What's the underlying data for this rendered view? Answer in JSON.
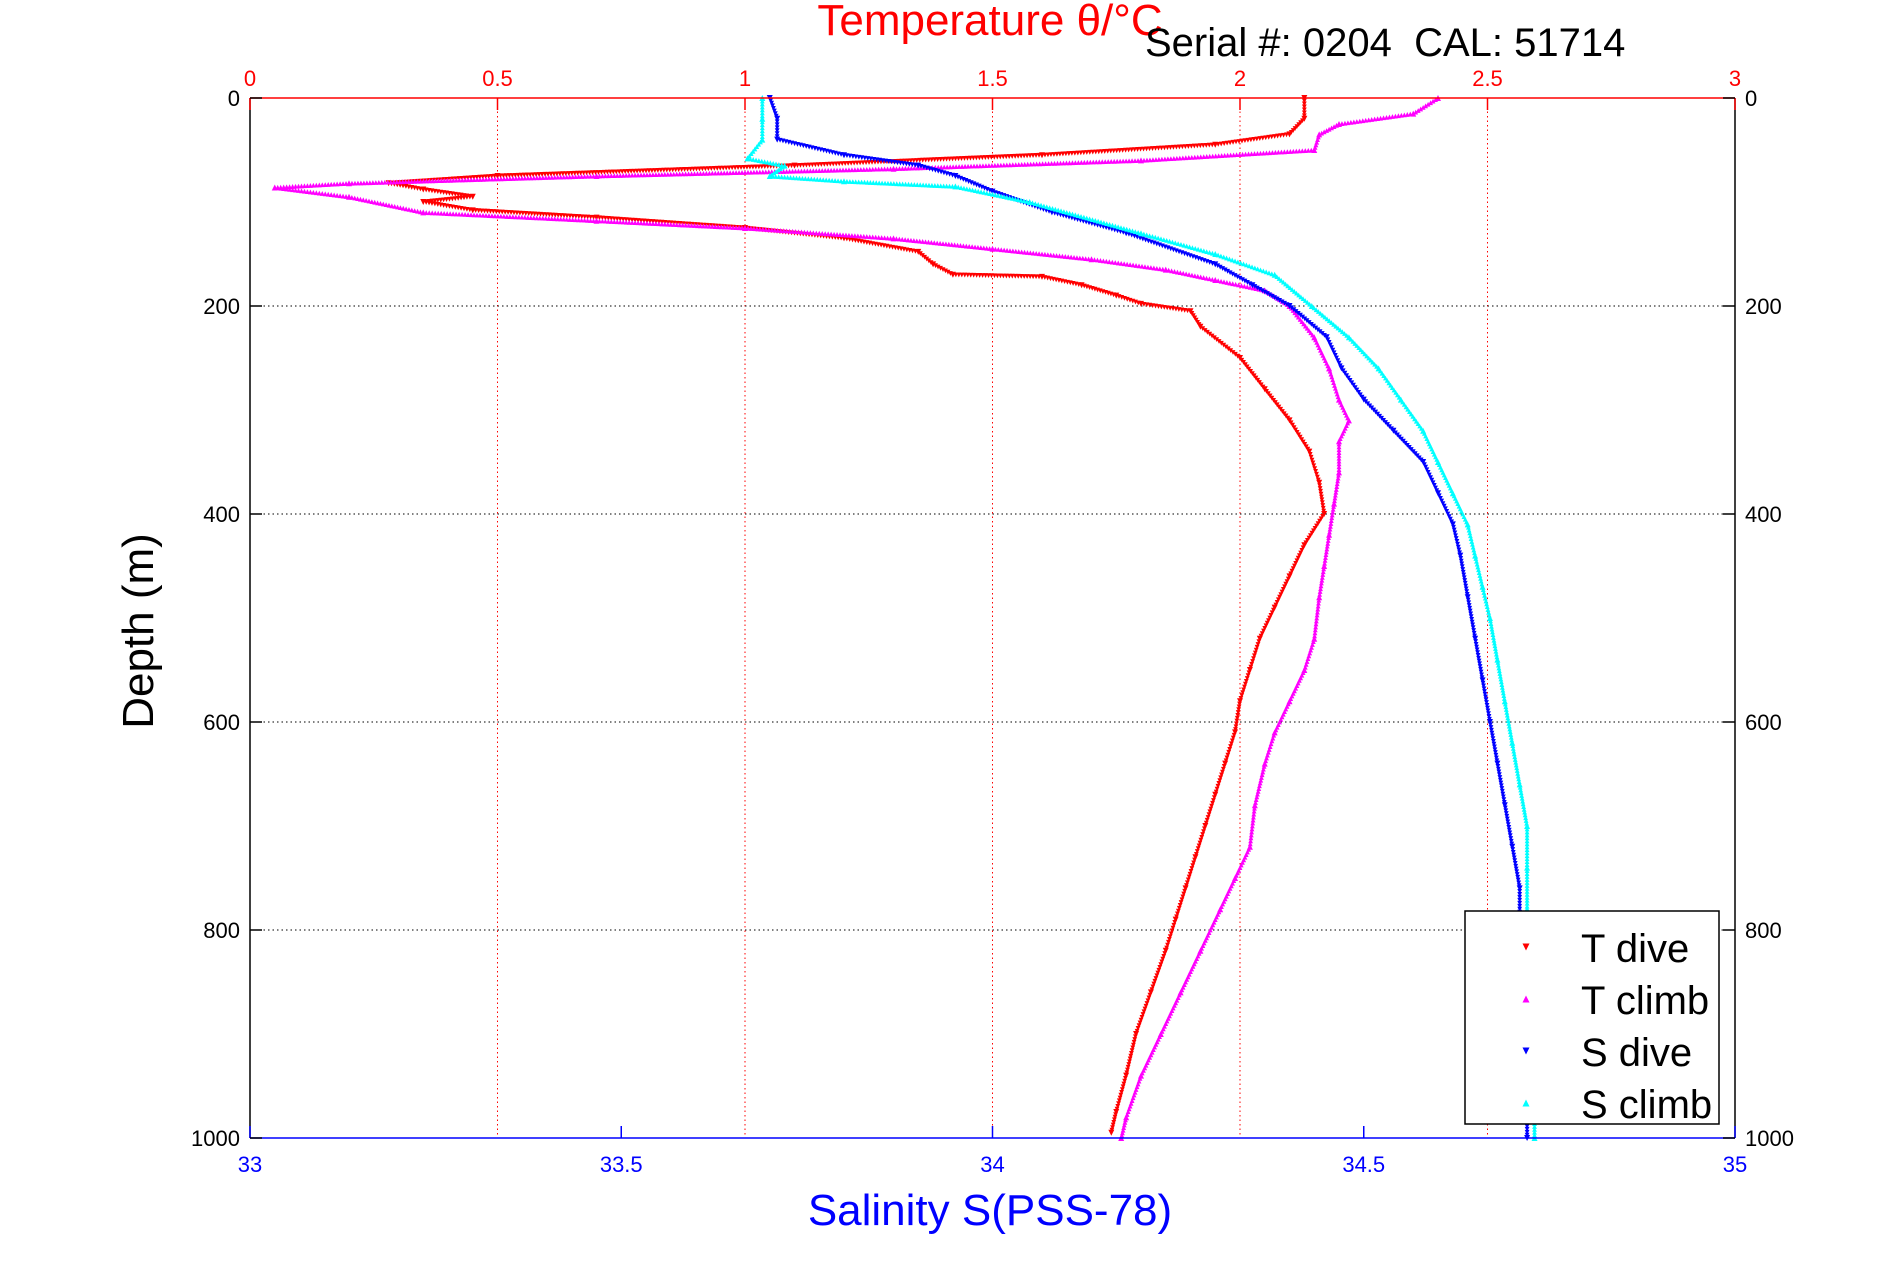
{
  "chart_data": {
    "type": "scatter",
    "title": "Temperature θ/°C",
    "subtitle": "Serial #: 0204  CAL: 51714",
    "xlabel_top": "Temperature θ/°C",
    "xlabel_bottom": "Salinity S(PSS-78)",
    "ylabel": "Depth (m)",
    "temp_axis": {
      "range": [
        0,
        3
      ],
      "ticks": [
        0,
        0.5,
        1,
        1.5,
        2,
        2.5,
        3
      ],
      "tick_labels": [
        "0",
        "0.5",
        "1",
        "1.5",
        "2",
        "2.5",
        "3"
      ],
      "color": "#ff0000"
    },
    "salinity_axis": {
      "range": [
        33,
        35
      ],
      "ticks": [
        33,
        33.5,
        34,
        34.5,
        35
      ],
      "tick_labels": [
        "33",
        "33.5",
        "34",
        "34.5",
        "35"
      ],
      "color": "#0000ff"
    },
    "depth_axis": {
      "range": [
        0,
        1000
      ],
      "reversed": true,
      "ticks": [
        0,
        200,
        400,
        600,
        800,
        1000
      ],
      "tick_labels": [
        "0",
        "200",
        "400",
        "600",
        "800",
        "1000"
      ]
    },
    "grid": true,
    "legend_position": "bottom-right",
    "series": [
      {
        "name": "T dive",
        "axis": "temperature",
        "color": "#ff0000",
        "marker": "triangle-down",
        "points": [
          [
            2.13,
            0
          ],
          [
            2.13,
            20
          ],
          [
            2.1,
            35
          ],
          [
            1.95,
            45
          ],
          [
            1.6,
            55
          ],
          [
            1.1,
            65
          ],
          [
            0.5,
            75
          ],
          [
            0.28,
            82
          ],
          [
            0.35,
            88
          ],
          [
            0.45,
            95
          ],
          [
            0.35,
            100
          ],
          [
            0.45,
            108
          ],
          [
            0.7,
            115
          ],
          [
            1.0,
            125
          ],
          [
            1.2,
            135
          ],
          [
            1.35,
            148
          ],
          [
            1.38,
            160
          ],
          [
            1.42,
            170
          ],
          [
            1.6,
            172
          ],
          [
            1.68,
            180
          ],
          [
            1.75,
            190
          ],
          [
            1.8,
            198
          ],
          [
            1.9,
            205
          ],
          [
            1.92,
            220
          ],
          [
            2.0,
            250
          ],
          [
            2.05,
            280
          ],
          [
            2.1,
            310
          ],
          [
            2.14,
            340
          ],
          [
            2.16,
            370
          ],
          [
            2.17,
            400
          ],
          [
            2.13,
            430
          ],
          [
            2.1,
            460
          ],
          [
            2.07,
            490
          ],
          [
            2.04,
            520
          ],
          [
            2.02,
            550
          ],
          [
            2.0,
            580
          ],
          [
            1.99,
            610
          ],
          [
            1.97,
            640
          ],
          [
            1.95,
            670
          ],
          [
            1.93,
            700
          ],
          [
            1.91,
            730
          ],
          [
            1.89,
            760
          ],
          [
            1.87,
            790
          ],
          [
            1.85,
            820
          ],
          [
            1.82,
            860
          ],
          [
            1.79,
            900
          ],
          [
            1.77,
            940
          ],
          [
            1.75,
            975
          ],
          [
            1.74,
            995
          ]
        ]
      },
      {
        "name": "T climb",
        "axis": "temperature",
        "color": "#ff00ff",
        "marker": "triangle-up",
        "points": [
          [
            2.4,
            0
          ],
          [
            2.35,
            15
          ],
          [
            2.2,
            25
          ],
          [
            2.16,
            35
          ],
          [
            2.15,
            50
          ],
          [
            1.8,
            60
          ],
          [
            1.3,
            68
          ],
          [
            0.7,
            75
          ],
          [
            0.2,
            82
          ],
          [
            0.05,
            86
          ],
          [
            0.2,
            95
          ],
          [
            0.35,
            110
          ],
          [
            0.7,
            118
          ],
          [
            1.0,
            125
          ],
          [
            1.3,
            135
          ],
          [
            1.5,
            145
          ],
          [
            1.7,
            155
          ],
          [
            1.85,
            165
          ],
          [
            1.95,
            175
          ],
          [
            2.05,
            185
          ],
          [
            2.1,
            200
          ],
          [
            2.15,
            230
          ],
          [
            2.18,
            260
          ],
          [
            2.2,
            290
          ],
          [
            2.22,
            310
          ],
          [
            2.2,
            330
          ],
          [
            2.2,
            360
          ],
          [
            2.19,
            390
          ],
          [
            2.18,
            420
          ],
          [
            2.17,
            450
          ],
          [
            2.16,
            480
          ],
          [
            2.15,
            520
          ],
          [
            2.13,
            550
          ],
          [
            2.1,
            580
          ],
          [
            2.07,
            610
          ],
          [
            2.05,
            640
          ],
          [
            2.03,
            680
          ],
          [
            2.02,
            720
          ],
          [
            1.99,
            750
          ],
          [
            1.96,
            780
          ],
          [
            1.92,
            820
          ],
          [
            1.88,
            860
          ],
          [
            1.84,
            900
          ],
          [
            1.8,
            940
          ],
          [
            1.77,
            980
          ],
          [
            1.76,
            1000
          ]
        ]
      },
      {
        "name": "S dive",
        "axis": "salinity",
        "color": "#0000ff",
        "marker": "triangle-down",
        "points": [
          [
            33.7,
            0
          ],
          [
            33.71,
            20
          ],
          [
            33.71,
            40
          ],
          [
            33.8,
            55
          ],
          [
            33.9,
            65
          ],
          [
            33.95,
            75
          ],
          [
            34.0,
            90
          ],
          [
            34.08,
            110
          ],
          [
            34.18,
            130
          ],
          [
            34.3,
            160
          ],
          [
            34.35,
            180
          ],
          [
            34.4,
            200
          ],
          [
            34.45,
            230
          ],
          [
            34.47,
            260
          ],
          [
            34.5,
            290
          ],
          [
            34.54,
            320
          ],
          [
            34.58,
            350
          ],
          [
            34.6,
            380
          ],
          [
            34.62,
            410
          ],
          [
            34.63,
            440
          ],
          [
            34.64,
            480
          ],
          [
            34.65,
            520
          ],
          [
            34.66,
            560
          ],
          [
            34.67,
            600
          ],
          [
            34.68,
            640
          ],
          [
            34.69,
            680
          ],
          [
            34.7,
            720
          ],
          [
            34.71,
            760
          ],
          [
            34.71,
            800
          ],
          [
            34.72,
            850
          ],
          [
            34.72,
            900
          ],
          [
            34.72,
            950
          ],
          [
            34.72,
            1000
          ]
        ]
      },
      {
        "name": "S climb",
        "axis": "salinity",
        "color": "#00ffff",
        "marker": "triangle-up",
        "points": [
          [
            33.69,
            0
          ],
          [
            33.69,
            20
          ],
          [
            33.69,
            40
          ],
          [
            33.67,
            58
          ],
          [
            33.72,
            65
          ],
          [
            33.7,
            75
          ],
          [
            33.8,
            80
          ],
          [
            33.95,
            85
          ],
          [
            34.05,
            100
          ],
          [
            34.2,
            130
          ],
          [
            34.3,
            150
          ],
          [
            34.38,
            170
          ],
          [
            34.43,
            200
          ],
          [
            34.48,
            230
          ],
          [
            34.52,
            260
          ],
          [
            34.55,
            290
          ],
          [
            34.58,
            320
          ],
          [
            34.6,
            350
          ],
          [
            34.62,
            380
          ],
          [
            34.64,
            410
          ],
          [
            34.65,
            440
          ],
          [
            34.66,
            470
          ],
          [
            34.67,
            500
          ],
          [
            34.68,
            540
          ],
          [
            34.69,
            580
          ],
          [
            34.7,
            620
          ],
          [
            34.71,
            660
          ],
          [
            34.72,
            700
          ],
          [
            34.72,
            740
          ],
          [
            34.72,
            780
          ],
          [
            34.72,
            820
          ],
          [
            34.72,
            860
          ],
          [
            34.73,
            900
          ],
          [
            34.73,
            950
          ],
          [
            34.73,
            1000
          ]
        ]
      }
    ]
  }
}
